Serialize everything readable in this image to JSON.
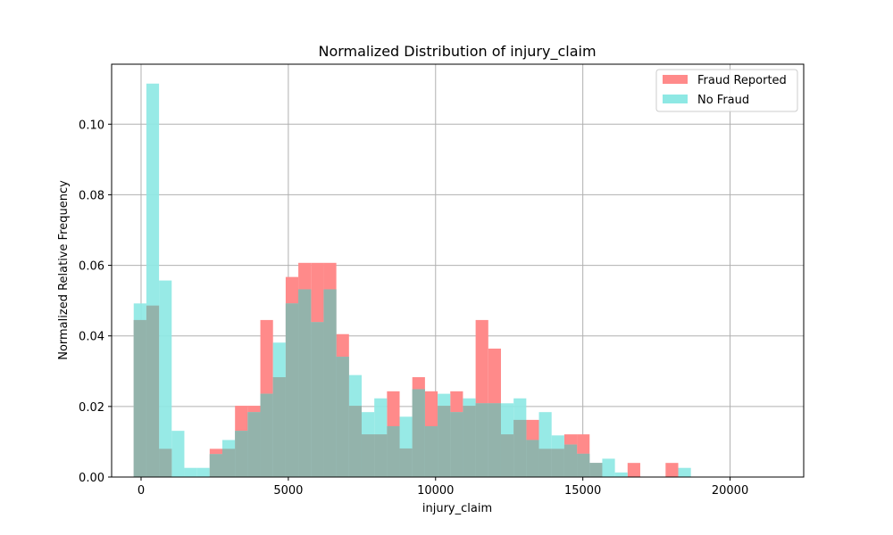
{
  "chart_data": {
    "type": "bar",
    "title": "Normalized Distribution of injury_claim",
    "xlabel": "injury_claim",
    "ylabel": "Normalized Relative Frequency",
    "xlim": [
      -1000,
      22500
    ],
    "ylim": [
      0,
      0.117
    ],
    "xticks": [
      0,
      5000,
      10000,
      15000,
      20000
    ],
    "xtick_labels": [
      "0",
      "5000",
      "10000",
      "15000",
      "20000"
    ],
    "yticks": [
      0.0,
      0.02,
      0.04,
      0.06,
      0.08,
      0.1
    ],
    "ytick_labels": [
      "0.00",
      "0.02",
      "0.04",
      "0.06",
      "0.08",
      "0.10"
    ],
    "grid": true,
    "legend_position": "top-right",
    "bin_start": -250,
    "bin_width": 430,
    "series": [
      {
        "name": "Fraud Reported",
        "color": "#ff8a8a",
        "values": [
          0.0445,
          0.0486,
          0.008,
          0.0,
          0.0,
          0.0,
          0.008,
          0.008,
          0.0202,
          0.0202,
          0.0445,
          0.0283,
          0.0567,
          0.0607,
          0.0607,
          0.0607,
          0.0405,
          0.0202,
          0.0121,
          0.0121,
          0.0243,
          0.0081,
          0.0283,
          0.0243,
          0.0202,
          0.0243,
          0.0202,
          0.0445,
          0.0364,
          0.0121,
          0.0162,
          0.0162,
          0.008,
          0.008,
          0.0121,
          0.0121,
          0.004,
          0.0,
          0.0,
          0.004,
          0.0,
          0.0,
          0.004,
          0.0
        ]
      },
      {
        "name": "No Fraud",
        "color": "#8ee8e4",
        "values": [
          0.0492,
          0.1115,
          0.0557,
          0.0131,
          0.0026,
          0.0026,
          0.0065,
          0.0105,
          0.0131,
          0.0184,
          0.0236,
          0.0381,
          0.0492,
          0.0532,
          0.0439,
          0.0532,
          0.0341,
          0.0289,
          0.0184,
          0.0223,
          0.0144,
          0.0171,
          0.0249,
          0.0144,
          0.0236,
          0.0184,
          0.0223,
          0.0209,
          0.0209,
          0.0209,
          0.0223,
          0.0105,
          0.0184,
          0.0118,
          0.0092,
          0.0066,
          0.004,
          0.0052,
          0.0013,
          0.0,
          0.0,
          0.0,
          0.0,
          0.0026
        ]
      }
    ]
  }
}
